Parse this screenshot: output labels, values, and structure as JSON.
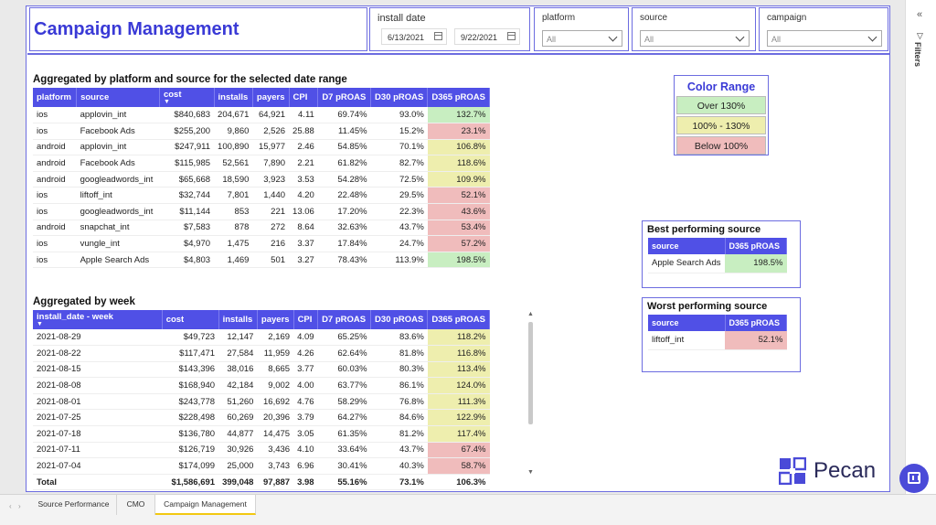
{
  "title": "Campaign Management",
  "filters": {
    "install_date": {
      "label": "install date",
      "start": "6/13/2021",
      "end": "9/22/2021"
    },
    "platform": {
      "label": "platform",
      "value": "All"
    },
    "source": {
      "label": "source",
      "value": "All"
    },
    "campaign": {
      "label": "campaign",
      "value": "All"
    }
  },
  "platform_table": {
    "title": "Aggregated by platform and source for the selected date range",
    "headers": [
      "platform",
      "source",
      "cost",
      "installs",
      "payers",
      "CPI",
      "D7 pROAS",
      "D30 pROAS",
      "D365 pROAS"
    ],
    "rows": [
      [
        "ios",
        "applovin_int",
        "$840,683",
        "204,671",
        "64,921",
        "4.11",
        "69.74%",
        "93.0%",
        "132.7%",
        "green"
      ],
      [
        "ios",
        "Facebook Ads",
        "$255,200",
        "9,860",
        "2,526",
        "25.88",
        "11.45%",
        "15.2%",
        "23.1%",
        "red"
      ],
      [
        "android",
        "applovin_int",
        "$247,911",
        "100,890",
        "15,977",
        "2.46",
        "54.85%",
        "70.1%",
        "106.8%",
        "yellow"
      ],
      [
        "android",
        "Facebook Ads",
        "$115,985",
        "52,561",
        "7,890",
        "2.21",
        "61.82%",
        "82.7%",
        "118.6%",
        "yellow"
      ],
      [
        "android",
        "googleadwords_int",
        "$65,668",
        "18,590",
        "3,923",
        "3.53",
        "54.28%",
        "72.5%",
        "109.9%",
        "yellow"
      ],
      [
        "ios",
        "liftoff_int",
        "$32,744",
        "7,801",
        "1,440",
        "4.20",
        "22.48%",
        "29.5%",
        "52.1%",
        "red"
      ],
      [
        "ios",
        "googleadwords_int",
        "$11,144",
        "853",
        "221",
        "13.06",
        "17.20%",
        "22.3%",
        "43.6%",
        "red"
      ],
      [
        "android",
        "snapchat_int",
        "$7,583",
        "878",
        "272",
        "8.64",
        "32.63%",
        "43.7%",
        "53.4%",
        "red"
      ],
      [
        "ios",
        "vungle_int",
        "$4,970",
        "1,475",
        "216",
        "3.37",
        "17.84%",
        "24.7%",
        "57.2%",
        "red"
      ],
      [
        "ios",
        "Apple Search Ads",
        "$4,803",
        "1,469",
        "501",
        "3.27",
        "78.43%",
        "113.9%",
        "198.5%",
        "green"
      ]
    ]
  },
  "week_table": {
    "title": "Aggregated by week",
    "headers": [
      "install_date - week",
      "cost",
      "installs",
      "payers",
      "CPI",
      "D7 pROAS",
      "D30 pROAS",
      "D365 pROAS"
    ],
    "rows": [
      [
        "2021-08-29",
        "$49,723",
        "12,147",
        "2,169",
        "4.09",
        "65.25%",
        "83.6%",
        "118.2%",
        "yellow"
      ],
      [
        "2021-08-22",
        "$117,471",
        "27,584",
        "11,959",
        "4.26",
        "62.64%",
        "81.8%",
        "116.8%",
        "yellow"
      ],
      [
        "2021-08-15",
        "$143,396",
        "38,016",
        "8,665",
        "3.77",
        "60.03%",
        "80.3%",
        "113.4%",
        "yellow"
      ],
      [
        "2021-08-08",
        "$168,940",
        "42,184",
        "9,002",
        "4.00",
        "63.77%",
        "86.1%",
        "124.0%",
        "yellow"
      ],
      [
        "2021-08-01",
        "$243,778",
        "51,260",
        "16,692",
        "4.76",
        "58.29%",
        "76.8%",
        "111.3%",
        "yellow"
      ],
      [
        "2021-07-25",
        "$228,498",
        "60,269",
        "20,396",
        "3.79",
        "64.27%",
        "84.6%",
        "122.9%",
        "yellow"
      ],
      [
        "2021-07-18",
        "$136,780",
        "44,877",
        "14,475",
        "3.05",
        "61.35%",
        "81.2%",
        "117.4%",
        "yellow"
      ],
      [
        "2021-07-11",
        "$126,719",
        "30,926",
        "3,436",
        "4.10",
        "33.64%",
        "43.7%",
        "67.4%",
        "red"
      ],
      [
        "2021-07-04",
        "$174,099",
        "25,000",
        "3,743",
        "6.96",
        "30.41%",
        "40.3%",
        "58.7%",
        "red"
      ]
    ],
    "total": [
      "Total",
      "$1,586,691",
      "399,048",
      "97,887",
      "3.98",
      "55.16%",
      "73.1%",
      "106.3%"
    ]
  },
  "color_range": {
    "title": "Color Range",
    "bands": [
      {
        "label": "Over 130%",
        "color": "#c8eec1"
      },
      {
        "label": "100% - 130%",
        "color": "#eeeeae"
      },
      {
        "label": "Below 100%",
        "color": "#f0bcbc"
      }
    ]
  },
  "best_source": {
    "title": "Best performing source",
    "headers": [
      "source",
      "D365 pROAS"
    ],
    "row": [
      "Apple Search Ads",
      "198.5%"
    ]
  },
  "worst_source": {
    "title": "Worst performing source",
    "headers": [
      "source",
      "D365 pROAS"
    ],
    "row": [
      "liftoff_int",
      "52.1%"
    ]
  },
  "logo": {
    "text": "Pecan"
  },
  "filters_pane": {
    "label": "Filters"
  },
  "tabs": [
    "Source Performance",
    "CMO",
    "Campaign Management"
  ],
  "active_tab": "Campaign Management",
  "colors": {
    "accent": "#5050e6",
    "green": "#c8eec1",
    "yellow": "#eeeeae",
    "red": "#f0bcbc"
  }
}
